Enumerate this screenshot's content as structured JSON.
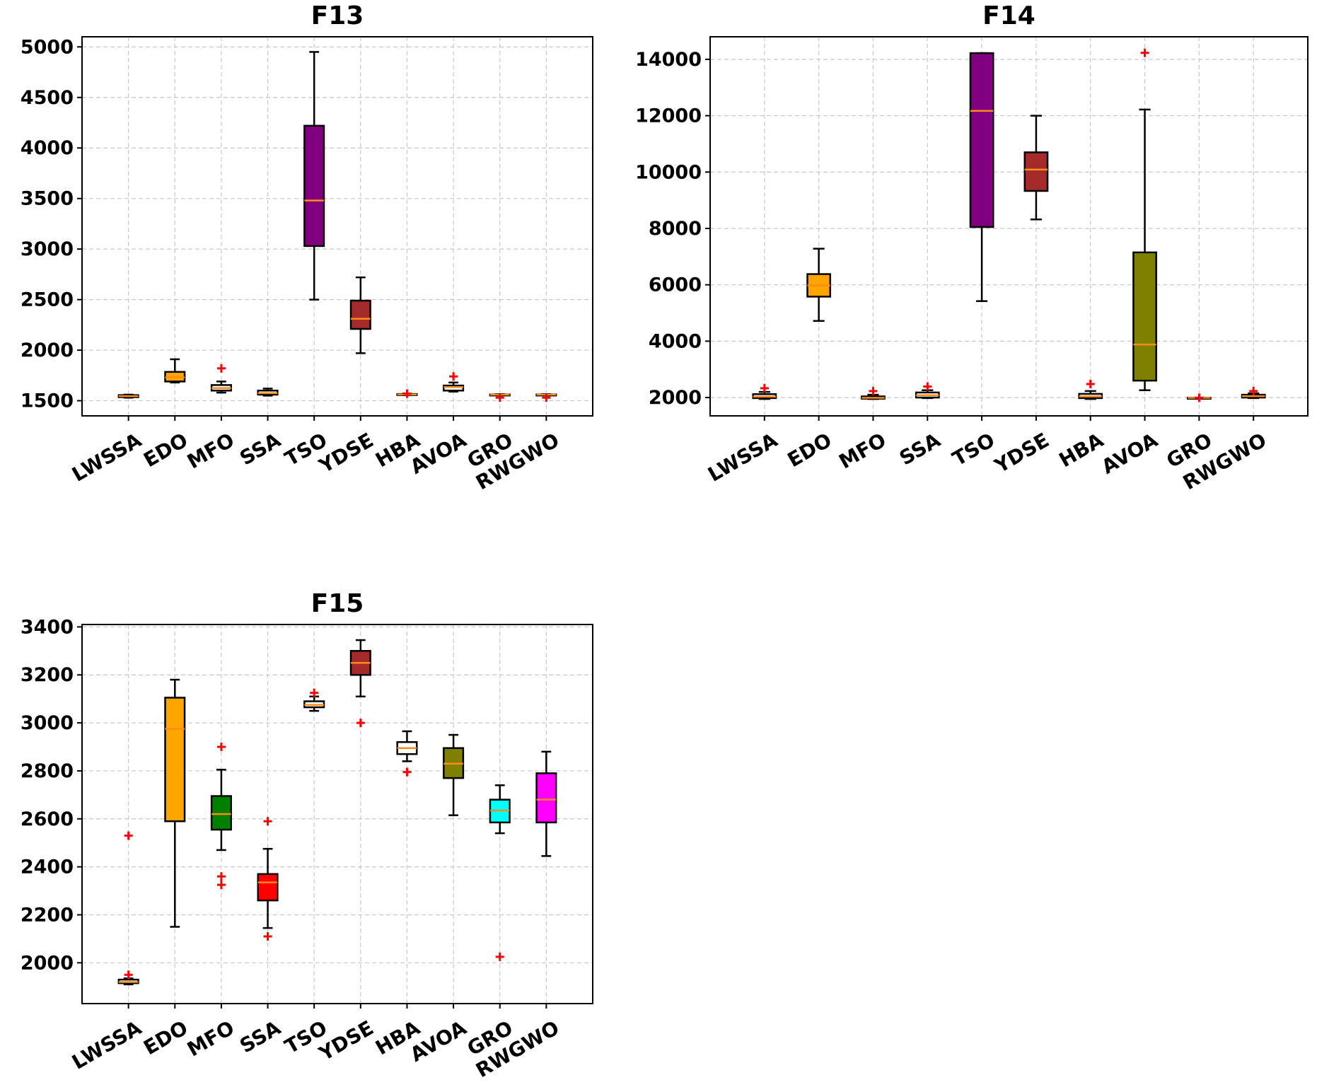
{
  "chart_data": [
    {
      "type": "box",
      "title": "F13",
      "categories": [
        "LWSSA",
        "EDO",
        "MFO",
        "SSA",
        "TSO",
        "YDSE",
        "HBA",
        "AVOA",
        "GRO",
        "RWGWO"
      ],
      "colors": [
        "#ffffff",
        "#ffa500",
        "#ffffff",
        "#ffffff",
        "#800080",
        "#a52a2a",
        "#ffffff",
        "#ffffff",
        "#ffffff",
        "#ffffff"
      ],
      "ylim": [
        1350,
        5100
      ],
      "yticks": [
        1500,
        2000,
        2500,
        3000,
        3500,
        4000,
        4500,
        5000
      ],
      "grid": true,
      "boxes": [
        {
          "whislo": 1530,
          "q1": 1535,
          "med": 1545,
          "q3": 1555,
          "whishi": 1560,
          "fliers": []
        },
        {
          "whislo": 1680,
          "q1": 1690,
          "med": 1730,
          "q3": 1785,
          "whishi": 1910,
          "fliers": []
        },
        {
          "whislo": 1580,
          "q1": 1600,
          "med": 1625,
          "q3": 1655,
          "whishi": 1690,
          "fliers": [
            1820
          ]
        },
        {
          "whislo": 1550,
          "q1": 1560,
          "med": 1575,
          "q3": 1600,
          "whishi": 1620,
          "fliers": []
        },
        {
          "whislo": 2500,
          "q1": 3030,
          "med": 3480,
          "q3": 4220,
          "whishi": 4950,
          "fliers": []
        },
        {
          "whislo": 1970,
          "q1": 2210,
          "med": 2310,
          "q3": 2490,
          "whishi": 2720,
          "fliers": []
        },
        {
          "whislo": 1555,
          "q1": 1558,
          "med": 1562,
          "q3": 1566,
          "whishi": 1570,
          "fliers": [
            1570
          ]
        },
        {
          "whislo": 1590,
          "q1": 1600,
          "med": 1635,
          "q3": 1650,
          "whishi": 1680,
          "fliers": [
            1740
          ]
        },
        {
          "whislo": 1555,
          "q1": 1558,
          "med": 1560,
          "q3": 1562,
          "whishi": 1565,
          "fliers": [
            1530
          ]
        },
        {
          "whislo": 1555,
          "q1": 1558,
          "med": 1560,
          "q3": 1562,
          "whishi": 1565,
          "fliers": [
            1530
          ]
        }
      ]
    },
    {
      "type": "box",
      "title": "F14",
      "categories": [
        "LWSSA",
        "EDO",
        "MFO",
        "SSA",
        "TSO",
        "YDSE",
        "HBA",
        "AVOA",
        "GRO",
        "RWGWO"
      ],
      "colors": [
        "#ffffff",
        "#ffa500",
        "#ffffff",
        "#ffffff",
        "#800080",
        "#a52a2a",
        "#ffffff",
        "#808000",
        "#ffffff",
        "#ffffff"
      ],
      "ylim": [
        1350,
        14800
      ],
      "yticks": [
        2000,
        4000,
        6000,
        8000,
        10000,
        12000,
        14000
      ],
      "grid": true,
      "boxes": [
        {
          "whislo": 1950,
          "q1": 1980,
          "med": 2030,
          "q3": 2120,
          "whishi": 2200,
          "fliers": [
            2330
          ]
        },
        {
          "whislo": 4720,
          "q1": 5580,
          "med": 5980,
          "q3": 6380,
          "whishi": 7280,
          "fliers": []
        },
        {
          "whislo": 1950,
          "q1": 1960,
          "med": 1990,
          "q3": 2040,
          "whishi": 2100,
          "fliers": [
            2230
          ]
        },
        {
          "whislo": 1980,
          "q1": 2000,
          "med": 2080,
          "q3": 2180,
          "whishi": 2260,
          "fliers": [
            2390
          ]
        },
        {
          "whislo": 5420,
          "q1": 8050,
          "med": 12170,
          "q3": 14220,
          "whishi": 14220,
          "fliers": []
        },
        {
          "whislo": 8320,
          "q1": 9330,
          "med": 10090,
          "q3": 10700,
          "whishi": 12000,
          "fliers": []
        },
        {
          "whislo": 1950,
          "q1": 1980,
          "med": 2040,
          "q3": 2130,
          "whishi": 2230,
          "fliers": [
            2480
          ]
        },
        {
          "whislo": 2260,
          "q1": 2600,
          "med": 3880,
          "q3": 7150,
          "whishi": 12220,
          "fliers": [
            14230
          ]
        },
        {
          "whislo": 1980,
          "q1": 1985,
          "med": 1990,
          "q3": 1995,
          "whishi": 2000,
          "fliers": [
            1990
          ]
        },
        {
          "whislo": 1980,
          "q1": 2000,
          "med": 2050,
          "q3": 2100,
          "whishi": 2150,
          "fliers": [
            2230
          ]
        }
      ]
    },
    {
      "type": "box",
      "title": "F15",
      "categories": [
        "LWSSA",
        "EDO",
        "MFO",
        "SSA",
        "TSO",
        "YDSE",
        "HBA",
        "AVOA",
        "GRO",
        "RWGWO"
      ],
      "colors": [
        "#ffffff",
        "#ffa500",
        "#008000",
        "#ff0000",
        "#ffffff",
        "#a52a2a",
        "#ffffff",
        "#808000",
        "#00ffff",
        "#ff00ff"
      ],
      "ylim": [
        1830,
        3410
      ],
      "yticks": [
        2000,
        2200,
        2400,
        2600,
        2800,
        3000,
        3200,
        3400
      ],
      "grid": true,
      "boxes": [
        {
          "whislo": 1910,
          "q1": 1915,
          "med": 1920,
          "q3": 1930,
          "whishi": 1935,
          "fliers": [
            1950,
            2530
          ]
        },
        {
          "whislo": 2150,
          "q1": 2590,
          "med": 2975,
          "q3": 3105,
          "whishi": 3180,
          "fliers": []
        },
        {
          "whislo": 2470,
          "q1": 2555,
          "med": 2620,
          "q3": 2695,
          "whishi": 2805,
          "fliers": [
            2900,
            2360,
            2325
          ]
        },
        {
          "whislo": 2145,
          "q1": 2260,
          "med": 2335,
          "q3": 2370,
          "whishi": 2475,
          "fliers": [
            2590,
            2110
          ]
        },
        {
          "whislo": 3050,
          "q1": 3065,
          "med": 3075,
          "q3": 3090,
          "whishi": 3110,
          "fliers": [
            3125
          ]
        },
        {
          "whislo": 3110,
          "q1": 3200,
          "med": 3250,
          "q3": 3300,
          "whishi": 3345,
          "fliers": [
            3000
          ]
        },
        {
          "whislo": 2840,
          "q1": 2870,
          "med": 2895,
          "q3": 2920,
          "whishi": 2965,
          "fliers": [
            2795
          ]
        },
        {
          "whislo": 2615,
          "q1": 2770,
          "med": 2830,
          "q3": 2895,
          "whishi": 2950,
          "fliers": []
        },
        {
          "whislo": 2540,
          "q1": 2585,
          "med": 2635,
          "q3": 2680,
          "whishi": 2740,
          "fliers": [
            2025
          ]
        },
        {
          "whislo": 2445,
          "q1": 2585,
          "med": 2680,
          "q3": 2790,
          "whishi": 2880,
          "fliers": []
        }
      ]
    }
  ]
}
